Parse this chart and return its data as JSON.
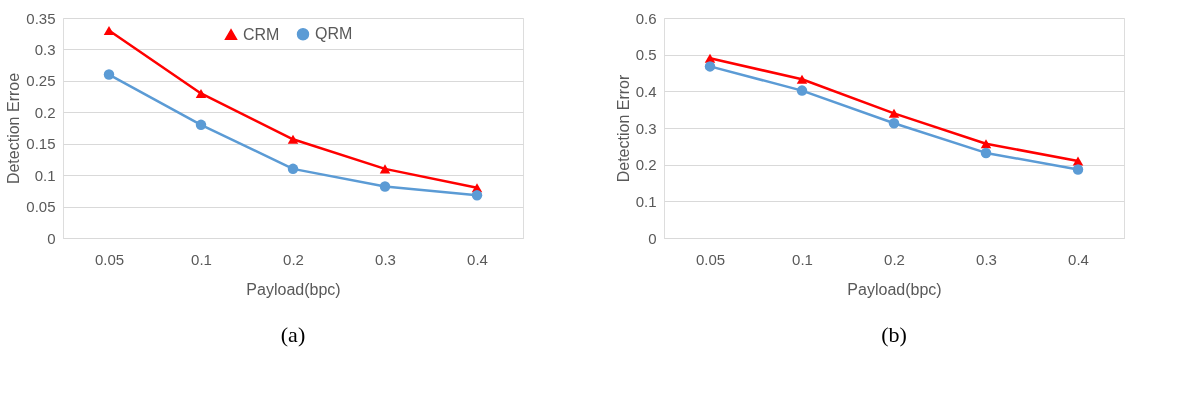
{
  "chart_data": [
    {
      "type": "line",
      "xlabel": "Payload(bpc)",
      "ylabel": "Detection Erroe",
      "annotations": [
        "(a)"
      ],
      "categories": [
        "0.05",
        "0.1",
        "0.2",
        "0.3",
        "0.4"
      ],
      "ylim": [
        0,
        0.35
      ],
      "yticks": [
        0,
        0.05,
        0.1,
        0.15,
        0.2,
        0.25,
        0.3,
        0.35
      ],
      "grid": "y",
      "legend": "top",
      "line_style": "solid",
      "series": [
        {
          "name": "CRM",
          "color": "#ff0000",
          "marker": "triangle",
          "values": [
            0.33,
            0.23,
            0.157,
            0.11,
            0.08
          ]
        },
        {
          "name": "QRM",
          "color": "#5b9bd5",
          "marker": "circle",
          "values": [
            0.26,
            0.18,
            0.11,
            0.082,
            0.068
          ]
        }
      ]
    },
    {
      "type": "line",
      "xlabel": "Payload(bpc)",
      "ylabel": "Detection Error",
      "annotations": [
        "(b)"
      ],
      "categories": [
        "0.05",
        "0.1",
        "0.2",
        "0.3",
        "0.4"
      ],
      "ylim": [
        0,
        0.6
      ],
      "yticks": [
        0,
        0.1,
        0.2,
        0.3,
        0.4,
        0.5,
        0.6
      ],
      "grid": "y",
      "legend": "top",
      "line_style": "solid",
      "series": [
        {
          "name": "CRM",
          "color": "#ff0000",
          "marker": "triangle",
          "values": [
            0.49,
            0.433,
            0.34,
            0.257,
            0.21
          ]
        },
        {
          "name": "QRM",
          "color": "#5b9bd5",
          "marker": "circle",
          "values": [
            0.468,
            0.402,
            0.313,
            0.232,
            0.187
          ]
        }
      ]
    }
  ]
}
